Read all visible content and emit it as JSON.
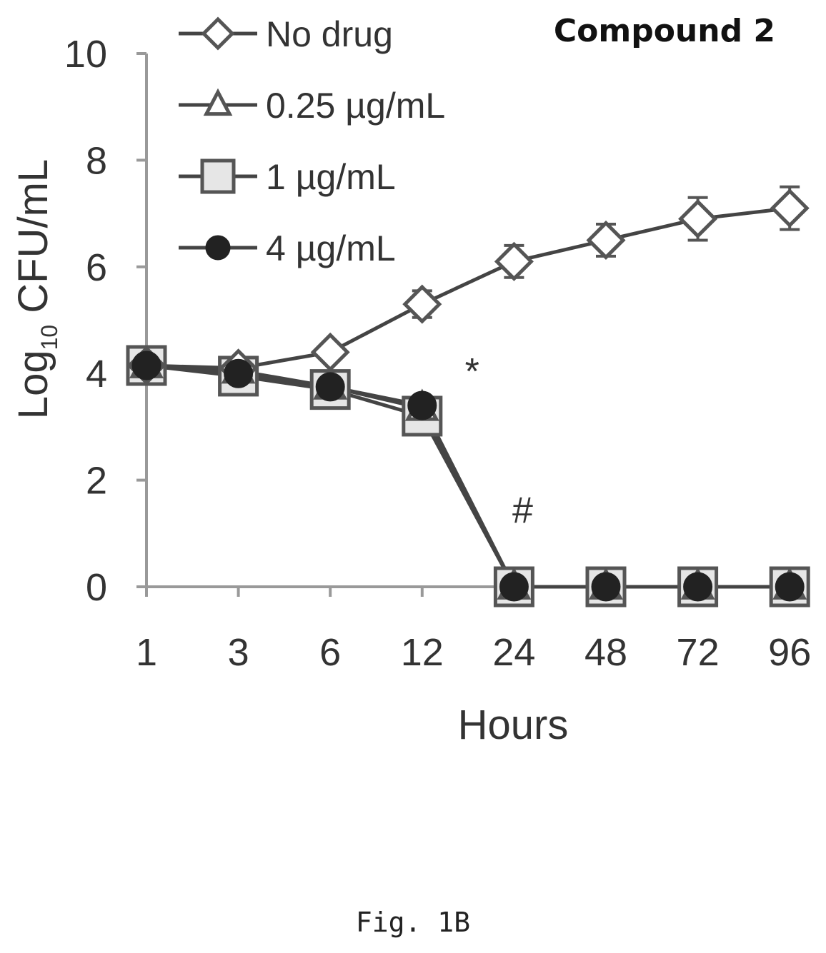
{
  "chart_data": {
    "type": "line",
    "title": "Compound 2",
    "xlabel": "Hours",
    "ylabel": "Log10 CFU/mL",
    "ylabel_main": "Log",
    "ylabel_sub": "10",
    "ylabel_rest": " CFU/mL",
    "categories": [
      "1",
      "3",
      "6",
      "12",
      "24",
      "48",
      "72",
      "96"
    ],
    "yticks": [
      0,
      2,
      4,
      6,
      8,
      10
    ],
    "ylim": [
      0,
      10
    ],
    "grid": false,
    "legend_position": "top-left",
    "series": [
      {
        "name": "No drug",
        "marker": "diamond",
        "values": [
          4.15,
          4.1,
          4.4,
          5.3,
          6.1,
          6.5,
          6.9,
          7.1
        ],
        "error": [
          0,
          0,
          0,
          0.25,
          0.3,
          0.3,
          0.4,
          0.4
        ]
      },
      {
        "name": "0.25 µg/mL",
        "marker": "triangle",
        "values": [
          4.15,
          4.05,
          3.75,
          3.35,
          0,
          0,
          0,
          0
        ],
        "error": [
          0,
          0,
          0,
          0,
          0,
          0,
          0,
          0
        ]
      },
      {
        "name": "1 µg/mL",
        "marker": "square",
        "values": [
          4.15,
          3.95,
          3.7,
          3.2,
          0,
          0,
          0,
          0
        ],
        "error": [
          0,
          0,
          0,
          0,
          0,
          0,
          0,
          0
        ]
      },
      {
        "name": "4 µg/mL",
        "marker": "circle",
        "values": [
          4.15,
          4.0,
          3.75,
          3.4,
          0,
          0,
          0,
          0
        ],
        "error": [
          0,
          0,
          0,
          0,
          0,
          0,
          0,
          0
        ]
      }
    ],
    "annotations": [
      {
        "text": "*",
        "category": "12",
        "y": 3.8
      },
      {
        "text": "#",
        "category": "24",
        "y": 1.2
      }
    ]
  },
  "caption": "Fig. 1B"
}
